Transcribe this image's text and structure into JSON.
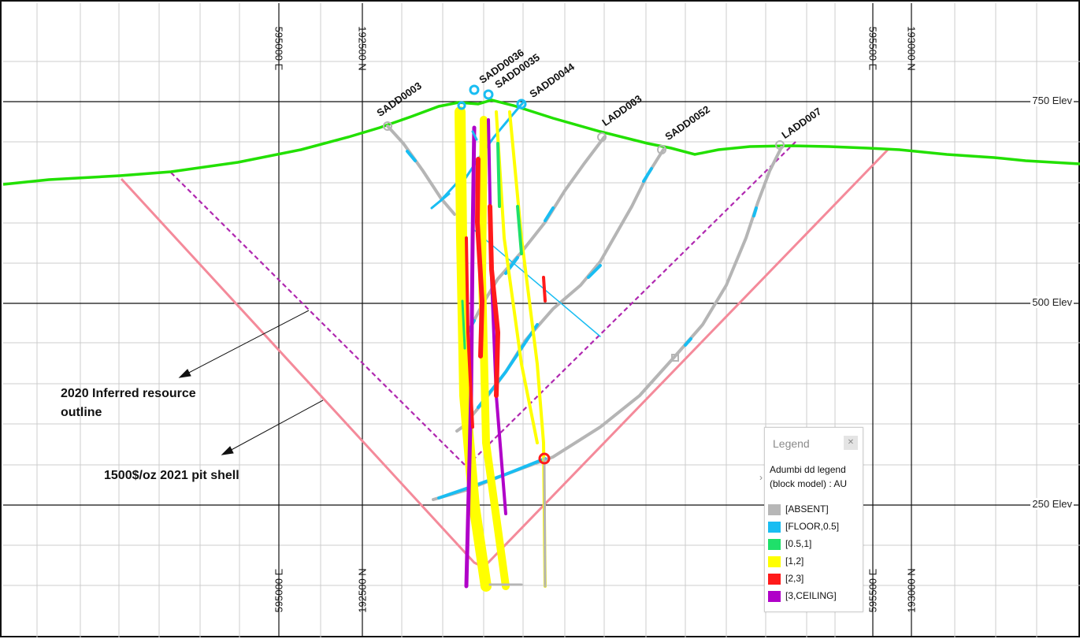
{
  "elevations": [
    "750 Elev",
    "500 Elev",
    "250 Elev"
  ],
  "coordinates": {
    "top": [
      "595000 E",
      "192500 N",
      "595500 E",
      "193000 N"
    ],
    "bottom": [
      "595000 E",
      "192500 N",
      "595500 E",
      "193000 N"
    ]
  },
  "holes": [
    "SADD0003",
    "SADD0036",
    "SADD0035",
    "SADD0044",
    "LADD003",
    "SADD0052",
    "LADD007"
  ],
  "annotations": {
    "inferred": [
      "2020 Inferred resource",
      "outline"
    ],
    "pit_shell": "1500$/oz 2021 pit shell"
  },
  "legend": {
    "title": "Legend",
    "close_icon": "close-icon",
    "subtitle": [
      "Adumbi dd legend",
      "(block model) : AU"
    ],
    "items": [
      {
        "label": "[ABSENT]",
        "color": "#b7b7b7"
      },
      {
        "label": "[FLOOR,0.5]",
        "color": "#19bdf2"
      },
      {
        "label": "[0.5,1]",
        "color": "#1fe06a"
      },
      {
        "label": "[1,2]",
        "color": "#ffff00"
      },
      {
        "label": "[2,3]",
        "color": "#ff1a1a"
      },
      {
        "label": "[3,CEILING]",
        "color": "#b000c8"
      }
    ]
  },
  "colors": {
    "topography": "#22e000",
    "pit_shell": "#f48a9a",
    "inferred_outline": "#b028b0",
    "grid_major": "#111111",
    "grid_minor": "#c8c8c8"
  }
}
